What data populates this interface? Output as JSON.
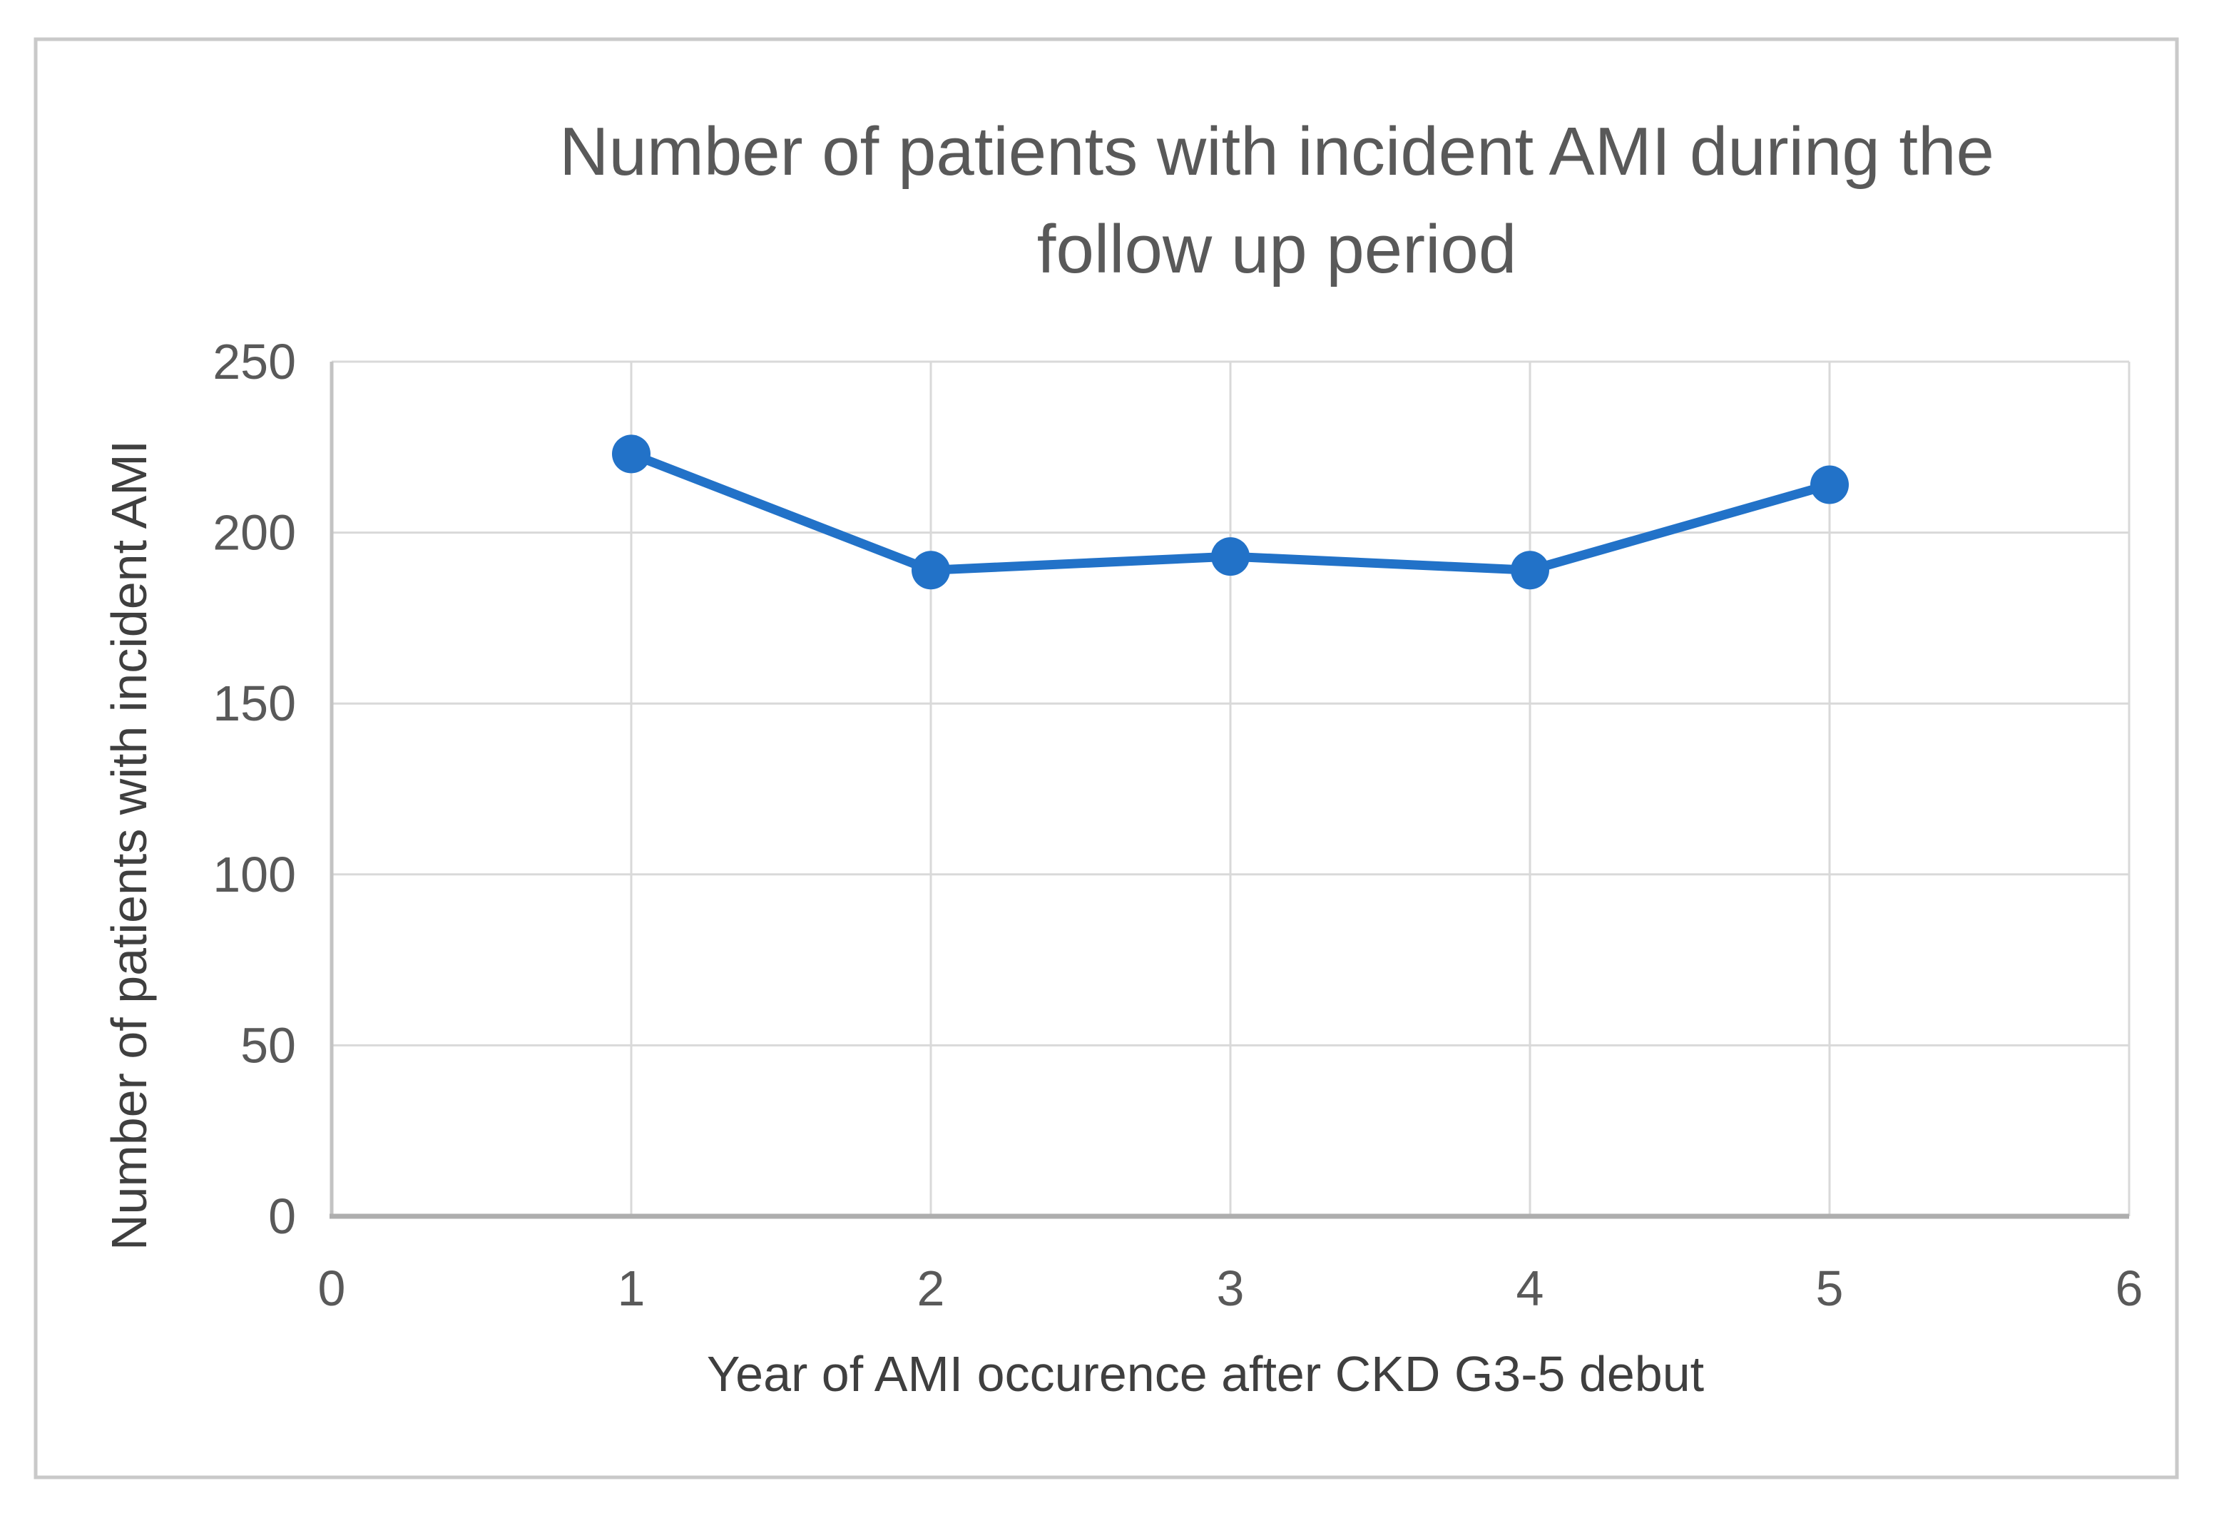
{
  "figure": {
    "background_color": "#ffffff",
    "border_color": "#c9c9c9"
  },
  "chart_data": {
    "type": "line",
    "title": "Number of patients with incident AMI during the follow up period",
    "title_lines": [
      "Number of patients with incident AMI during the",
      "follow up period"
    ],
    "xlabel": "Year of AMI occurence after CKD G3-5 debut",
    "ylabel": "Number of patients with incident AMI",
    "x": [
      1,
      2,
      3,
      4,
      5
    ],
    "values": [
      223,
      189,
      193,
      189,
      214
    ],
    "xlim": [
      0,
      6
    ],
    "ylim": [
      0,
      250
    ],
    "x_ticks": [
      "0",
      "1",
      "2",
      "3",
      "4",
      "5",
      "6"
    ],
    "x_tick_values": [
      0,
      1,
      2,
      3,
      4,
      5,
      6
    ],
    "y_ticks": [
      "0",
      "50",
      "100",
      "150",
      "200",
      "250"
    ],
    "y_tick_values": [
      0,
      50,
      100,
      150,
      200,
      250
    ],
    "grid": true,
    "legend": "none",
    "line_color": "#2272c8",
    "marker": "circle",
    "gridline_color": "#d9d9d9",
    "y_axis_line_color": "#c3c3c3",
    "x_axis_line_color": "#aeaeae",
    "title_color": "#595959",
    "tick_color": "#595959",
    "axis_title_color": "#3f3f3f"
  }
}
